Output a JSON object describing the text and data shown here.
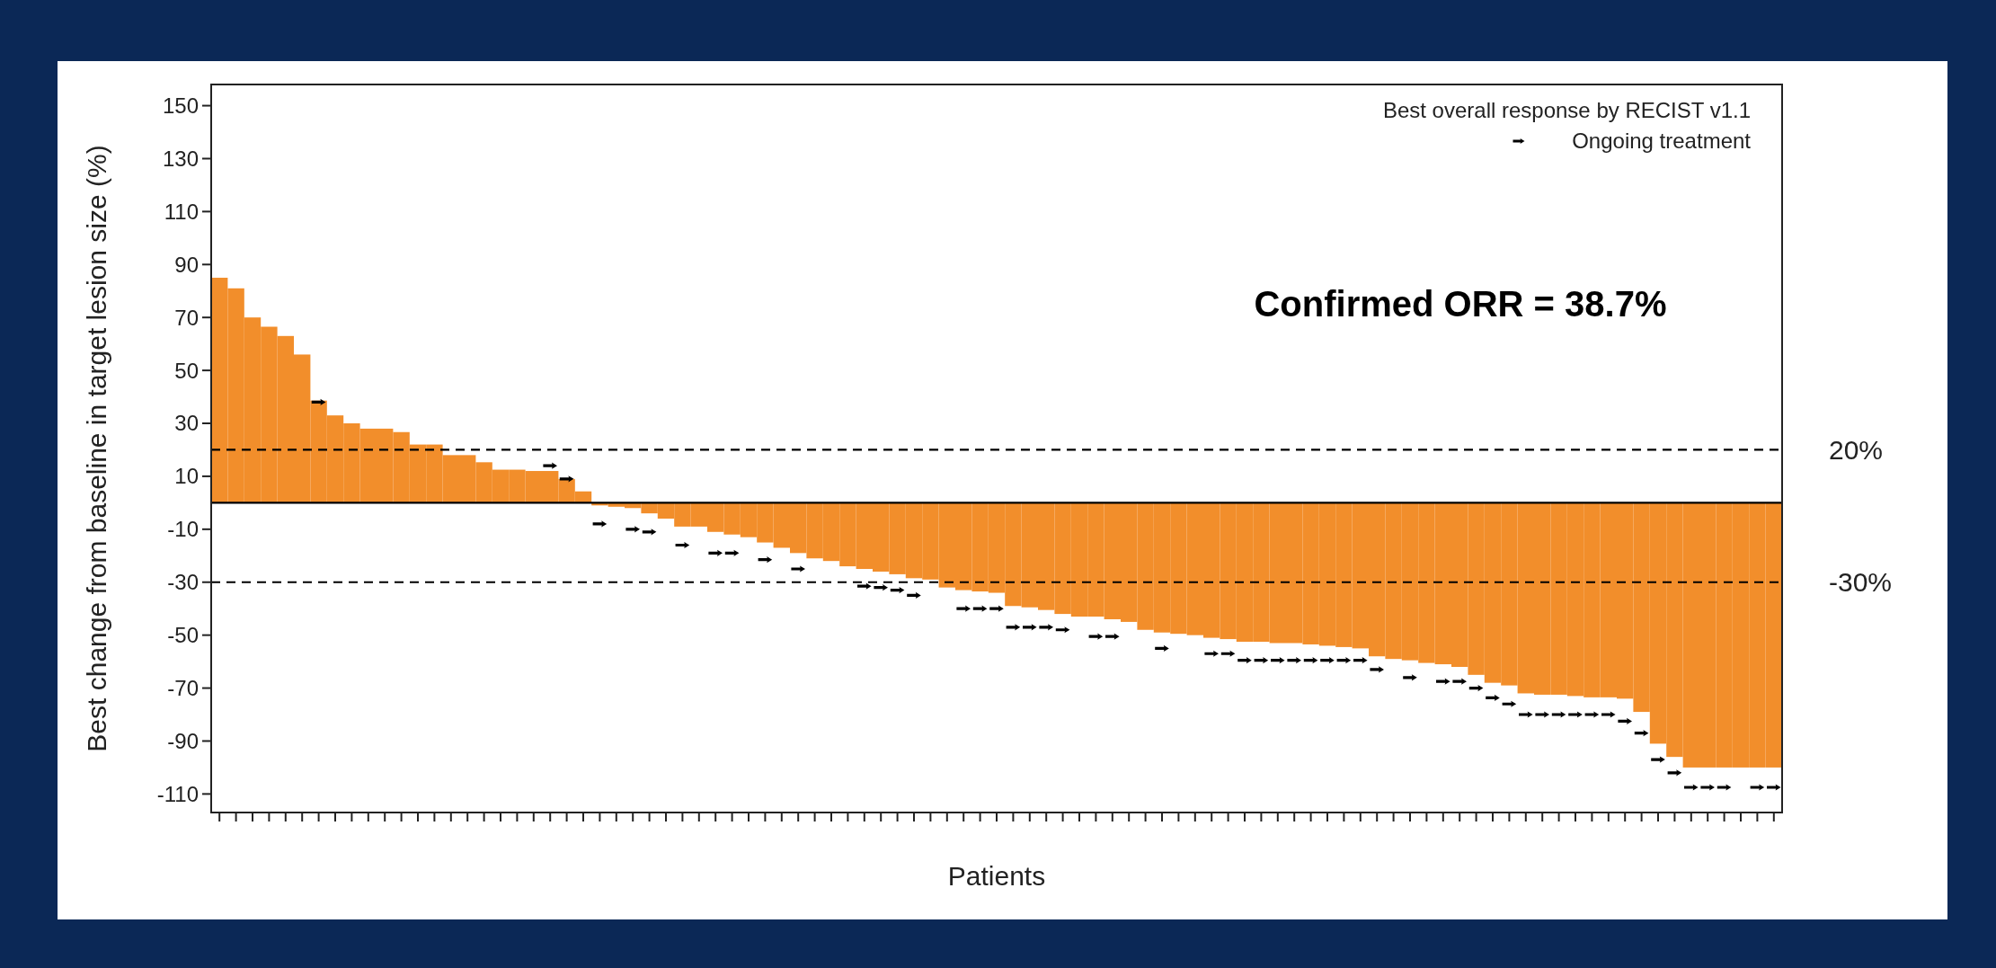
{
  "chart_data": {
    "type": "bar",
    "ylabel": "Best change from baseline in target lesion size (%)",
    "xlabel": "Patients",
    "legend_title": "Best overall response by RECIST v1.1",
    "legend": "top right",
    "annotations": [
      "Confirmed ORR = 38.7%"
    ],
    "categories": [
      null,
      null,
      null,
      null,
      null,
      null,
      null,
      null,
      null,
      null,
      null,
      null,
      null,
      null,
      null,
      null,
      null,
      null,
      null,
      null,
      null,
      null,
      null,
      null,
      null,
      null,
      null,
      null,
      null,
      null,
      null,
      null,
      null,
      null,
      null,
      null,
      null,
      null,
      null,
      null,
      null,
      null,
      null,
      null,
      null,
      null,
      null,
      null,
      null,
      null,
      null,
      null,
      null,
      null,
      null,
      null,
      null,
      null,
      null,
      null,
      null,
      null,
      null,
      null,
      null,
      null,
      null,
      null,
      null,
      null,
      null,
      null,
      null,
      null,
      null,
      null,
      null,
      null,
      null,
      null,
      null,
      null,
      null,
      null,
      null,
      null,
      null,
      null,
      null,
      null,
      null,
      null,
      null,
      null,
      null
    ],
    "ylim": [
      -117,
      158
    ],
    "yticks": [
      150,
      130,
      110,
      90,
      70,
      50,
      30,
      10,
      -10,
      -30,
      -50,
      -70,
      -90,
      -110
    ],
    "ref_lines": [
      {
        "axis": "y",
        "value": 20,
        "label": "20%",
        "color": "#000000",
        "line_style": "dashed"
      },
      {
        "axis": "y",
        "value": -30,
        "label": "-30%",
        "color": "#000000",
        "line_style": "dashed"
      }
    ],
    "series": [
      {
        "color": "#f28e2b",
        "values": [
          85,
          81,
          70,
          66.5,
          63,
          56,
          38.6,
          33,
          30,
          28,
          28,
          26.7,
          22,
          22,
          18,
          18,
          15.3,
          12.5,
          12.5,
          12,
          12,
          9,
          4.3,
          -1,
          -1.5,
          -2,
          -4,
          -6,
          -9,
          -9,
          -11,
          -12,
          -13,
          -15,
          -17,
          -19,
          -21,
          -22,
          -24,
          -25,
          -26,
          -27,
          -28.5,
          -29,
          -32,
          -33,
          -33.5,
          -34,
          -39,
          -39.5,
          -40.5,
          -42,
          -43,
          -43,
          -44,
          -45,
          -48,
          -49,
          -49.5,
          -50,
          -51,
          -51.5,
          -52.5,
          -52.5,
          -53,
          -53,
          -53.5,
          -54,
          -54.5,
          -55,
          -58,
          -59,
          -59.5,
          -60.5,
          -61,
          -62,
          -65,
          -68,
          -69,
          -72,
          -72.5,
          -72.5,
          -73,
          -73.5,
          -73.5,
          -74,
          -79,
          -91,
          -96,
          -100,
          -100,
          -100,
          -100,
          -100,
          -100
        ]
      },
      {
        "type": "scatter",
        "name": "Ongoing treatment",
        "color": "#000000",
        "values": [
          null,
          null,
          null,
          null,
          null,
          null,
          38,
          null,
          null,
          null,
          null,
          null,
          null,
          null,
          null,
          null,
          null,
          null,
          null,
          null,
          14,
          9,
          null,
          -8,
          null,
          -10,
          -11,
          null,
          -16,
          null,
          -19,
          -19,
          null,
          -21.5,
          null,
          -25,
          null,
          null,
          null,
          -31.5,
          -32,
          -33,
          -35,
          null,
          null,
          -40,
          -40,
          -40,
          -47,
          -47,
          -47,
          -48,
          null,
          -50.5,
          -50.5,
          null,
          null,
          -55,
          null,
          null,
          -57,
          -57,
          -59.5,
          -59.5,
          -59.5,
          -59.5,
          -59.5,
          -59.5,
          -59.5,
          -59.5,
          -63,
          null,
          -66,
          null,
          -67.5,
          -67.5,
          -70,
          -73.7,
          -76,
          -80,
          -80,
          -80,
          -80,
          -80,
          -80,
          -82.5,
          -87,
          -97,
          -102,
          -107.5,
          -107.5,
          -107.5,
          null,
          -107.5,
          -107.5
        ]
      }
    ]
  }
}
